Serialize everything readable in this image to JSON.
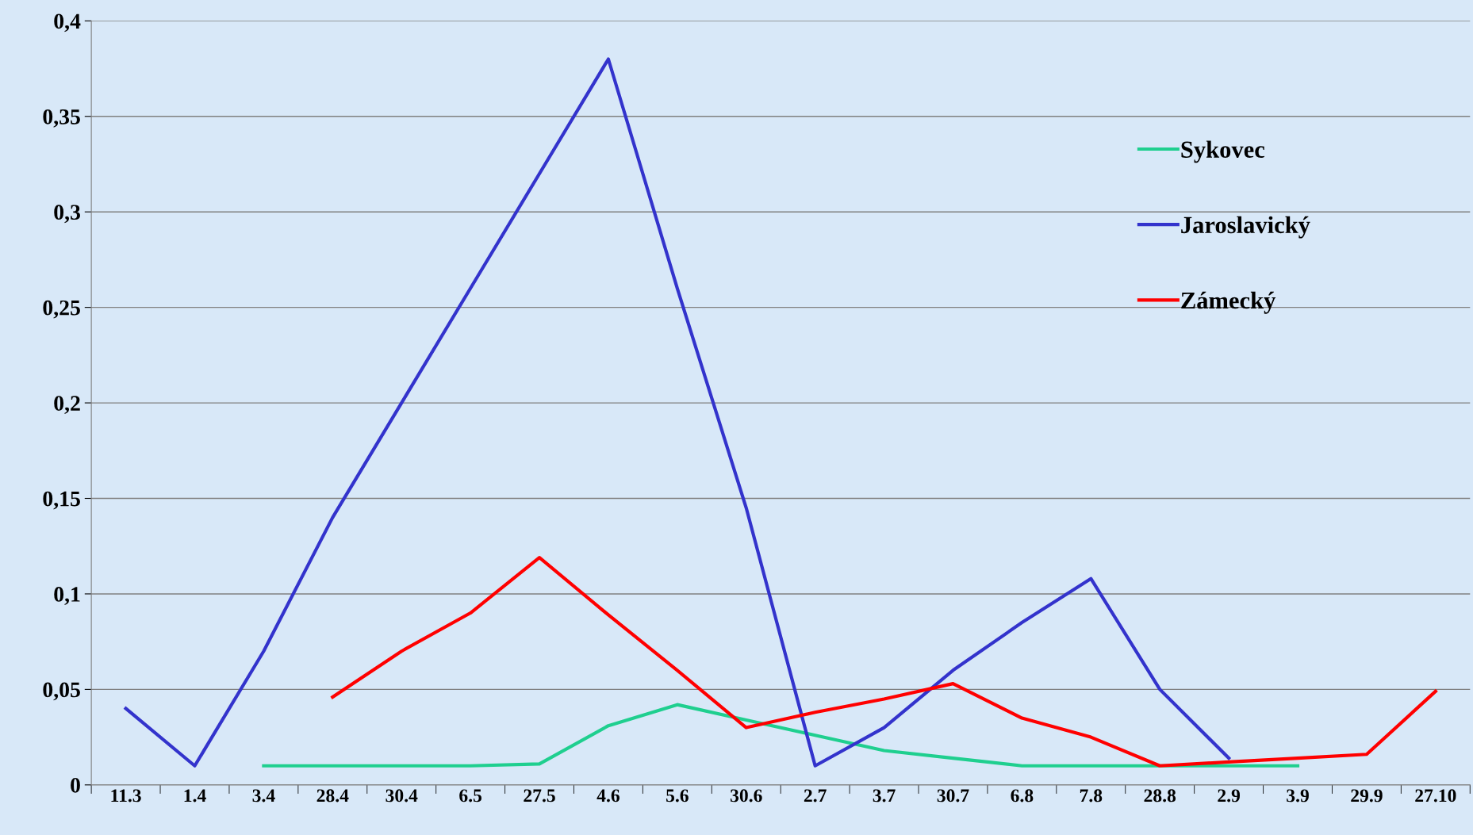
{
  "chart_data": {
    "type": "line",
    "categories": [
      "11.3",
      "1.4",
      "3.4",
      "28.4",
      "30.4",
      "6.5",
      "27.5",
      "4.6",
      "5.6",
      "30.6",
      "2.7",
      "3.7",
      "30.7",
      "6.8",
      "7.8",
      "28.8",
      "2.9",
      "3.9",
      "29.9",
      "27.10"
    ],
    "series": [
      {
        "name": "Sykovec",
        "color": "#1fcf8f",
        "values": [
          null,
          null,
          0.01,
          0.01,
          0.01,
          0.01,
          0.011,
          0.031,
          0.042,
          0.034,
          0.026,
          0.018,
          0.014,
          0.01,
          0.01,
          0.01,
          0.01,
          0.01,
          null,
          null
        ]
      },
      {
        "name": "Jaroslavický",
        "color": "#3333cc",
        "values": [
          0.04,
          0.01,
          0.07,
          0.14,
          0.2,
          0.26,
          0.32,
          0.38,
          0.26,
          0.145,
          0.01,
          0.03,
          0.06,
          0.085,
          0.108,
          0.05,
          0.014,
          null,
          null,
          null
        ]
      },
      {
        "name": "Zámecký",
        "color": "#ff0000",
        "values": [
          null,
          null,
          null,
          0.046,
          0.07,
          0.09,
          0.119,
          0.089,
          0.06,
          0.03,
          0.038,
          0.045,
          0.053,
          0.035,
          0.025,
          0.01,
          0.012,
          0.014,
          0.016,
          0.049
        ]
      }
    ],
    "ylim": [
      0,
      0.4
    ],
    "yticks": [
      {
        "value": 0,
        "label": "0"
      },
      {
        "value": 0.05,
        "label": "0,05"
      },
      {
        "value": 0.1,
        "label": "0,1"
      },
      {
        "value": 0.15,
        "label": "0,15"
      },
      {
        "value": 0.2,
        "label": "0,2"
      },
      {
        "value": 0.25,
        "label": "0,25"
      },
      {
        "value": 0.3,
        "label": "0,3"
      },
      {
        "value": 0.35,
        "label": "0,35"
      },
      {
        "value": 0.4,
        "label": "0,4"
      }
    ],
    "grid": "y",
    "legend": "right",
    "marker": "none",
    "line_style": "solid"
  }
}
